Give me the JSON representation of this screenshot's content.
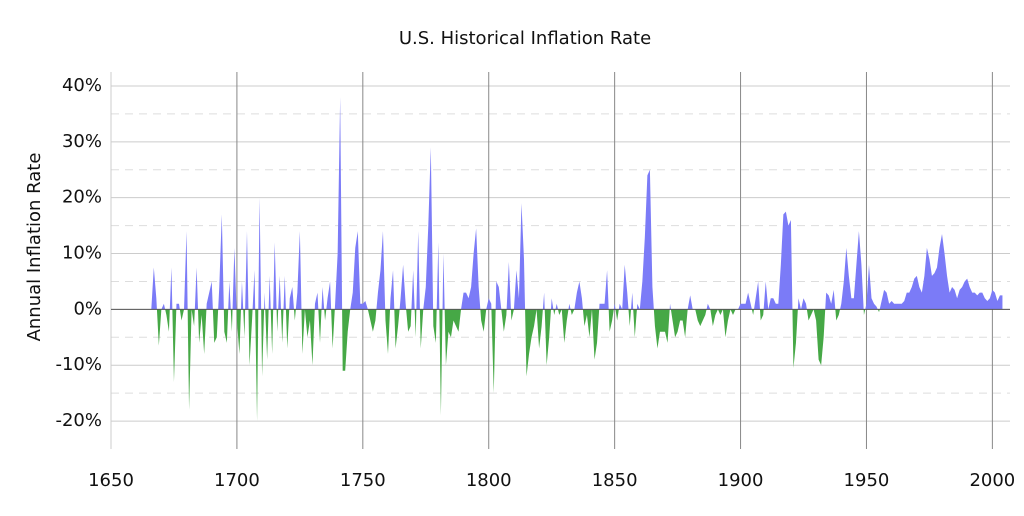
{
  "chart_data": {
    "type": "area",
    "title": "U.S. Historical Inflation Rate",
    "y_label": "Annual Inflation Rate",
    "positive_color": "#7b7bf7",
    "negative_color": "#46a846",
    "grid": true,
    "xlim": [
      1650,
      2007
    ],
    "ylim": [
      -25,
      42.5
    ],
    "xticks": [
      1650,
      1700,
      1750,
      1800,
      1850,
      1900,
      1950,
      2000
    ],
    "yticks": [
      {
        "value": -20,
        "label": "-20%"
      },
      {
        "value": -10,
        "label": "-10%"
      },
      {
        "value": 0,
        "label": "0%"
      },
      {
        "value": 10,
        "label": "10%"
      },
      {
        "value": 20,
        "label": "20%"
      },
      {
        "value": 30,
        "label": "30%"
      },
      {
        "value": 40,
        "label": "40%"
      }
    ],
    "minor_yticks": [
      -15,
      -5,
      5,
      15,
      25,
      35
    ],
    "x": [
      1666,
      1667,
      1668,
      1669,
      1670,
      1671,
      1672,
      1673,
      1674,
      1675,
      1676,
      1677,
      1678,
      1679,
      1680,
      1681,
      1682,
      1683,
      1684,
      1685,
      1686,
      1687,
      1688,
      1689,
      1690,
      1691,
      1692,
      1693,
      1694,
      1695,
      1696,
      1697,
      1698,
      1699,
      1700,
      1701,
      1702,
      1703,
      1704,
      1705,
      1706,
      1707,
      1708,
      1709,
      1710,
      1711,
      1712,
      1713,
      1714,
      1715,
      1716,
      1717,
      1718,
      1719,
      1720,
      1721,
      1722,
      1723,
      1724,
      1725,
      1726,
      1727,
      1728,
      1729,
      1730,
      1731,
      1732,
      1733,
      1734,
      1735,
      1736,
      1737,
      1738,
      1739,
      1740,
      1741,
      1742,
      1743,
      1744,
      1745,
      1746,
      1747,
      1748,
      1749,
      1750,
      1751,
      1752,
      1753,
      1754,
      1755,
      1756,
      1757,
      1758,
      1759,
      1760,
      1761,
      1762,
      1763,
      1764,
      1765,
      1766,
      1767,
      1768,
      1769,
      1770,
      1771,
      1772,
      1773,
      1774,
      1775,
      1776,
      1777,
      1778,
      1779,
      1780,
      1781,
      1782,
      1783,
      1784,
      1785,
      1786,
      1787,
      1788,
      1789,
      1790,
      1791,
      1792,
      1793,
      1794,
      1795,
      1796,
      1797,
      1798,
      1799,
      1800,
      1801,
      1802,
      1803,
      1804,
      1805,
      1806,
      1807,
      1808,
      1809,
      1810,
      1811,
      1812,
      1813,
      1814,
      1815,
      1816,
      1817,
      1818,
      1819,
      1820,
      1821,
      1822,
      1823,
      1824,
      1825,
      1826,
      1827,
      1828,
      1829,
      1830,
      1831,
      1832,
      1833,
      1834,
      1835,
      1836,
      1837,
      1838,
      1839,
      1840,
      1841,
      1842,
      1843,
      1844,
      1845,
      1846,
      1847,
      1848,
      1849,
      1850,
      1851,
      1852,
      1853,
      1854,
      1855,
      1856,
      1857,
      1858,
      1859,
      1860,
      1861,
      1862,
      1863,
      1864,
      1865,
      1866,
      1867,
      1868,
      1869,
      1870,
      1871,
      1872,
      1873,
      1874,
      1875,
      1876,
      1877,
      1878,
      1879,
      1880,
      1881,
      1882,
      1883,
      1884,
      1885,
      1886,
      1887,
      1888,
      1889,
      1890,
      1891,
      1892,
      1893,
      1894,
      1895,
      1896,
      1897,
      1898,
      1899,
      1900,
      1901,
      1902,
      1903,
      1904,
      1905,
      1906,
      1907,
      1908,
      1909,
      1910,
      1911,
      1912,
      1913,
      1914,
      1915,
      1916,
      1917,
      1918,
      1919,
      1920,
      1921,
      1922,
      1923,
      1924,
      1925,
      1926,
      1927,
      1928,
      1929,
      1930,
      1931,
      1932,
      1933,
      1934,
      1935,
      1936,
      1937,
      1938,
      1939,
      1940,
      1941,
      1942,
      1943,
      1944,
      1945,
      1946,
      1947,
      1948,
      1949,
      1950,
      1951,
      1952,
      1953,
      1954,
      1955,
      1956,
      1957,
      1958,
      1959,
      1960,
      1961,
      1962,
      1963,
      1964,
      1965,
      1966,
      1967,
      1968,
      1969,
      1970,
      1971,
      1972,
      1973,
      1974,
      1975,
      1976,
      1977,
      1978,
      1979,
      1980,
      1981,
      1982,
      1983,
      1984,
      1985,
      1986,
      1987,
      1988,
      1989,
      1990,
      1991,
      1992,
      1993,
      1994,
      1995,
      1996,
      1997,
      1998,
      1999,
      2000,
      2001,
      2002,
      2003,
      2004
    ],
    "values": [
      0,
      7.5,
      2,
      -6.5,
      0,
      1,
      -1,
      -4,
      7.5,
      -13,
      1,
      1,
      -2,
      0,
      14,
      -18,
      0,
      -3,
      7.5,
      -6,
      -1,
      -8,
      1,
      3,
      5,
      -6,
      -5,
      4,
      17,
      -4,
      -6,
      5,
      -4,
      11,
      -2,
      -8,
      5,
      -5,
      14,
      -10,
      -2,
      7,
      -20,
      20,
      -12,
      3,
      -9,
      6,
      -8,
      12,
      -4,
      6,
      -6,
      6,
      -7,
      2,
      4,
      -2,
      3,
      14,
      -8,
      0,
      -5,
      -2,
      -10,
      1,
      3,
      -6,
      4,
      -2,
      2,
      5,
      -7,
      1,
      10,
      38,
      -11,
      -11,
      -4,
      0,
      3,
      11,
      14,
      1,
      1,
      1.5,
      0,
      -2,
      -4,
      -2,
      3,
      7,
      14,
      -2,
      -8,
      2,
      7,
      -7,
      -3,
      2,
      8,
      1,
      -4,
      -3,
      7,
      -5,
      14,
      -7,
      0,
      4,
      15,
      29,
      -3,
      -6,
      12,
      -19,
      10,
      -10,
      -4,
      -5,
      -2,
      -3,
      -4,
      0,
      3,
      3,
      2,
      4,
      10,
      14.5,
      4,
      -2,
      -4,
      0,
      2,
      1,
      -15,
      5,
      4,
      0,
      -4,
      -1,
      8.5,
      -2,
      0,
      7,
      2,
      19,
      9,
      -12,
      -8,
      -5,
      -3,
      0,
      -7,
      -3,
      3,
      -10,
      -5,
      2,
      -1,
      1,
      -1,
      0,
      -6,
      -2,
      1,
      -1,
      0,
      3,
      5,
      2,
      -3,
      -1,
      -5,
      0,
      -9,
      -6,
      1,
      1,
      1,
      7,
      -4,
      -2,
      1,
      -2,
      1,
      0,
      8,
      3,
      -3,
      3,
      -5,
      1,
      0,
      5,
      13,
      24,
      25,
      4,
      -3,
      -7,
      -4,
      -4,
      -4,
      -6,
      1,
      -2,
      -5,
      -4,
      -2,
      -2,
      -5,
      0,
      2.5,
      0,
      0,
      -2,
      -3,
      -2,
      -1,
      1,
      0,
      -3,
      -1,
      0,
      -1,
      0,
      -5,
      -2,
      0,
      -1,
      0,
      0,
      1,
      1,
      1,
      3,
      1,
      -1,
      2,
      5,
      -2,
      -1,
      5,
      0,
      2,
      2,
      1,
      1,
      8,
      17,
      17.5,
      15,
      16,
      -10.5,
      -6,
      2,
      0,
      2,
      1,
      -2,
      -1,
      0,
      -2,
      -9,
      -10,
      -5,
      3,
      2.5,
      1,
      3.5,
      -2,
      -1,
      1,
      5,
      11,
      6,
      2,
      2,
      8,
      14,
      8,
      -1,
      1,
      8,
      2,
      1,
      0.5,
      -0.5,
      1.5,
      3.5,
      3,
      1,
      1.5,
      1,
      1,
      1,
      1,
      1.5,
      3,
      3,
      4,
      5.5,
      6,
      4,
      3,
      6,
      11,
      9,
      6,
      6.5,
      7.5,
      11,
      13.5,
      10,
      6,
      3,
      4,
      3.5,
      2,
      3.5,
      4,
      5,
      5.5,
      4,
      3,
      3,
      2.5,
      3,
      3,
      2,
      1.5,
      2,
      3.5,
      3,
      1.5,
      2.5,
      2.5
    ]
  }
}
